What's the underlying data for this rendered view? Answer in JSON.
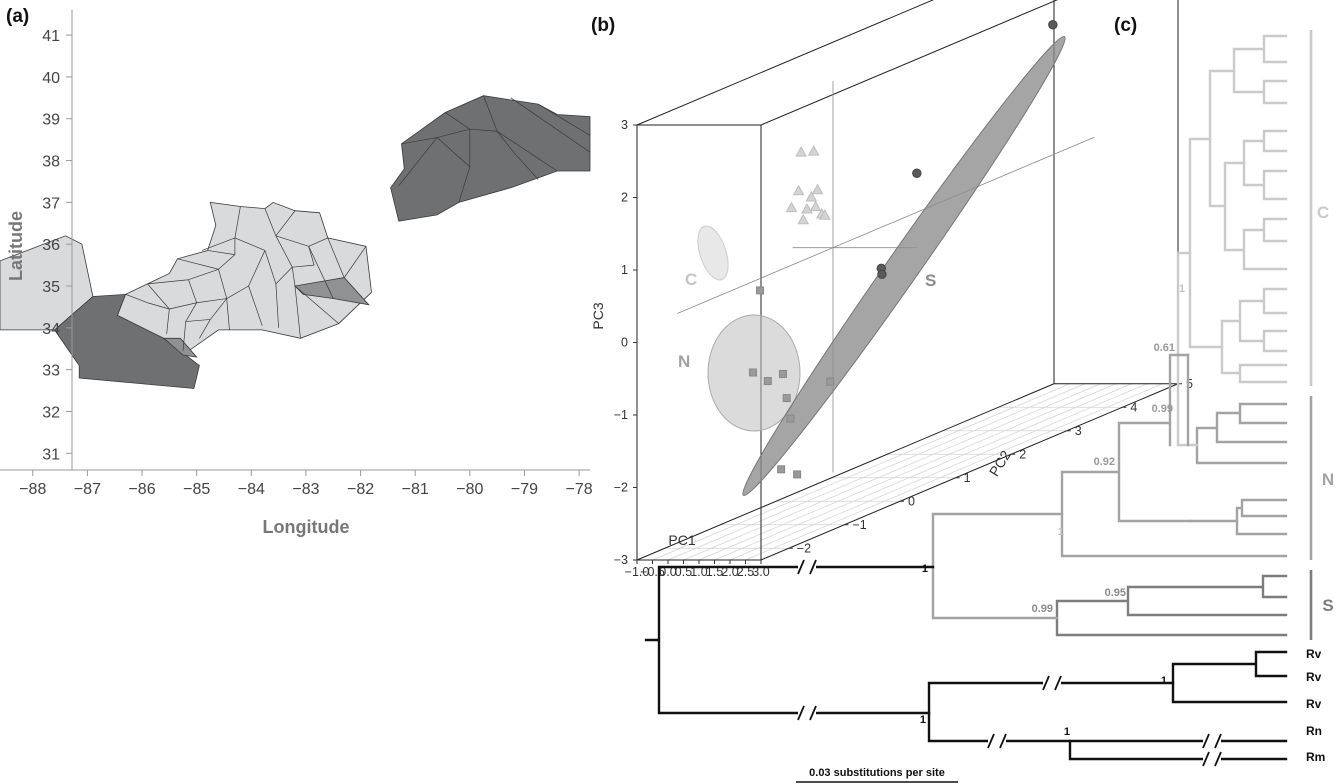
{
  "colors": {
    "light_region": "#d9dadc",
    "mid_region": "#8f9193",
    "dark_region": "#6e7072",
    "clade_C": "#cacaca",
    "clade_N": "#a3a3a3",
    "clade_S": "#7d7d7d",
    "outgroup": "#111111"
  },
  "panels": {
    "a": {
      "label": "(a)"
    },
    "b": {
      "label": "(b)"
    },
    "c": {
      "label": "(c)"
    }
  },
  "chart_data": [
    {
      "panel": "a",
      "type": "map",
      "xlabel": "Longitude",
      "ylabel": "Latitude",
      "xlim": [
        -88.6,
        -77.8
      ],
      "ylim": [
        30.6,
        41.6
      ],
      "x_ticks": [
        -88,
        -87,
        -86,
        -85,
        -84,
        -83,
        -82,
        -81,
        -80,
        -79,
        -78
      ],
      "y_ticks": [
        31,
        32,
        33,
        34,
        35,
        36,
        37,
        38,
        39,
        40,
        41
      ],
      "regions": [
        {
          "group": "light",
          "polygon": [
            [
              -88.6,
              35.6
            ],
            [
              -87.4,
              36.2
            ],
            [
              -87.1,
              36.0
            ],
            [
              -86.9,
              34.75
            ],
            [
              -87.6,
              33.95
            ],
            [
              -88.6,
              33.95
            ]
          ]
        },
        {
          "group": "dark",
          "polygon": [
            [
              -87.6,
              33.95
            ],
            [
              -86.9,
              34.75
            ],
            [
              -86.3,
              34.8
            ],
            [
              -86.45,
              34.3
            ],
            [
              -85.6,
              33.75
            ],
            [
              -84.95,
              33.1
            ],
            [
              -85.05,
              32.55
            ],
            [
              -87.15,
              32.8
            ],
            [
              -87.15,
              33.1
            ]
          ]
        },
        {
          "group": "light",
          "polygon": [
            [
              -86.45,
              34.3
            ],
            [
              -86.3,
              34.8
            ],
            [
              -85.9,
              35.05
            ],
            [
              -85.5,
              35.3
            ],
            [
              -85.35,
              35.65
            ],
            [
              -84.8,
              35.85
            ],
            [
              -84.65,
              36.45
            ],
            [
              -84.75,
              37.0
            ],
            [
              -84.2,
              36.9
            ],
            [
              -83.75,
              36.85
            ],
            [
              -83.6,
              37.0
            ],
            [
              -83.2,
              36.8
            ],
            [
              -82.75,
              36.75
            ],
            [
              -82.6,
              36.15
            ],
            [
              -81.9,
              35.95
            ],
            [
              -81.8,
              34.85
            ],
            [
              -82.4,
              34.1
            ],
            [
              -83.1,
              33.75
            ],
            [
              -83.8,
              33.95
            ],
            [
              -84.6,
              33.95
            ],
            [
              -85.2,
              33.4
            ],
            [
              -85.6,
              33.75
            ]
          ]
        },
        {
          "group": "mid",
          "polygon": [
            [
              -83.2,
              35.0
            ],
            [
              -82.3,
              35.2
            ],
            [
              -81.85,
              34.55
            ],
            [
              -82.5,
              34.7
            ],
            [
              -83.05,
              34.8
            ]
          ]
        },
        {
          "group": "mid",
          "polygon": [
            [
              -85.6,
              33.75
            ],
            [
              -85.3,
              33.75
            ],
            [
              -85.0,
              33.3
            ],
            [
              -85.25,
              33.35
            ]
          ]
        },
        {
          "group": "dark",
          "polygon": [
            [
              -81.45,
              37.35
            ],
            [
              -81.2,
              37.8
            ],
            [
              -81.25,
              38.4
            ],
            [
              -80.45,
              39.15
            ],
            [
              -79.75,
              39.55
            ],
            [
              -78.75,
              39.35
            ],
            [
              -78.4,
              39.1
            ],
            [
              -77.8,
              39.05
            ],
            [
              -77.8,
              37.75
            ],
            [
              -78.4,
              37.75
            ],
            [
              -79.25,
              37.35
            ],
            [
              -80.2,
              37.0
            ],
            [
              -80.6,
              36.7
            ],
            [
              -81.3,
              36.55
            ]
          ]
        }
      ],
      "boundaries": [
        [
          [
            -84.2,
            36.9
          ],
          [
            -84.3,
            36.15
          ]
        ],
        [
          [
            -84.3,
            36.15
          ],
          [
            -84.9,
            35.85
          ]
        ],
        [
          [
            -84.3,
            36.15
          ],
          [
            -83.75,
            35.85
          ]
        ],
        [
          [
            -83.75,
            36.85
          ],
          [
            -83.55,
            36.2
          ]
        ],
        [
          [
            -83.55,
            36.2
          ],
          [
            -83.2,
            36.8
          ]
        ],
        [
          [
            -83.55,
            36.2
          ],
          [
            -82.95,
            35.95
          ]
        ],
        [
          [
            -82.95,
            35.95
          ],
          [
            -82.6,
            36.15
          ]
        ],
        [
          [
            -82.95,
            35.95
          ],
          [
            -82.5,
            34.7
          ]
        ],
        [
          [
            -83.55,
            36.2
          ],
          [
            -83.25,
            35.45
          ]
        ],
        [
          [
            -83.25,
            35.45
          ],
          [
            -82.85,
            35.5
          ]
        ],
        [
          [
            -82.85,
            35.5
          ],
          [
            -82.95,
            35.95
          ]
        ],
        [
          [
            -84.3,
            36.15
          ],
          [
            -84.3,
            35.75
          ]
        ],
        [
          [
            -84.3,
            35.75
          ],
          [
            -84.8,
            35.85
          ]
        ],
        [
          [
            -84.3,
            35.75
          ],
          [
            -84.6,
            35.4
          ]
        ],
        [
          [
            -84.6,
            35.4
          ],
          [
            -85.35,
            35.65
          ]
        ],
        [
          [
            -85.9,
            35.05
          ],
          [
            -85.15,
            35.15
          ]
        ],
        [
          [
            -85.15,
            35.15
          ],
          [
            -84.6,
            35.4
          ]
        ],
        [
          [
            -85.15,
            35.15
          ],
          [
            -85.0,
            34.6
          ]
        ],
        [
          [
            -85.0,
            34.6
          ],
          [
            -85.5,
            34.45
          ]
        ],
        [
          [
            -85.5,
            34.45
          ],
          [
            -85.9,
            35.05
          ]
        ],
        [
          [
            -85.5,
            34.45
          ],
          [
            -85.55,
            33.85
          ]
        ],
        [
          [
            -85.0,
            34.6
          ],
          [
            -84.45,
            34.7
          ]
        ],
        [
          [
            -84.45,
            34.7
          ],
          [
            -84.6,
            35.4
          ]
        ],
        [
          [
            -84.45,
            34.7
          ],
          [
            -84.4,
            33.95
          ]
        ],
        [
          [
            -84.45,
            34.7
          ],
          [
            -84.05,
            35.0
          ]
        ],
        [
          [
            -84.05,
            35.0
          ],
          [
            -83.75,
            35.85
          ]
        ],
        [
          [
            -84.05,
            35.0
          ],
          [
            -83.8,
            34.05
          ]
        ],
        [
          [
            -83.75,
            35.85
          ],
          [
            -83.55,
            35.05
          ]
        ],
        [
          [
            -83.55,
            35.05
          ],
          [
            -83.25,
            35.45
          ]
        ],
        [
          [
            -83.55,
            35.05
          ],
          [
            -83.5,
            34.0
          ]
        ],
        [
          [
            -83.25,
            35.45
          ],
          [
            -83.2,
            35.0
          ]
        ],
        [
          [
            -83.2,
            35.0
          ],
          [
            -83.1,
            33.75
          ]
        ],
        [
          [
            -83.2,
            35.0
          ],
          [
            -82.4,
            34.1
          ]
        ],
        [
          [
            -82.3,
            35.2
          ],
          [
            -82.6,
            36.15
          ]
        ],
        [
          [
            -82.3,
            35.2
          ],
          [
            -81.9,
            35.95
          ]
        ],
        [
          [
            -85.2,
            34.15
          ],
          [
            -85.0,
            34.6
          ]
        ],
        [
          [
            -85.2,
            34.15
          ],
          [
            -84.75,
            34.2
          ]
        ],
        [
          [
            -84.75,
            34.2
          ],
          [
            -84.45,
            34.7
          ]
        ],
        [
          [
            -85.2,
            34.15
          ],
          [
            -85.25,
            33.45
          ]
        ],
        [
          [
            -84.75,
            34.2
          ],
          [
            -84.95,
            33.75
          ]
        ],
        [
          [
            -86.3,
            34.8
          ],
          [
            -85.9,
            34.6
          ]
        ],
        [
          [
            -85.9,
            34.6
          ],
          [
            -85.5,
            34.45
          ]
        ],
        [
          [
            -80.45,
            39.15
          ],
          [
            -80.0,
            38.75
          ]
        ],
        [
          [
            -80.0,
            38.75
          ],
          [
            -80.6,
            38.55
          ]
        ],
        [
          [
            -80.6,
            38.55
          ],
          [
            -81.25,
            38.4
          ]
        ],
        [
          [
            -80.0,
            38.75
          ],
          [
            -79.5,
            38.7
          ]
        ],
        [
          [
            -79.5,
            38.7
          ],
          [
            -79.75,
            39.55
          ]
        ],
        [
          [
            -79.5,
            38.7
          ],
          [
            -79.2,
            38.2
          ]
        ],
        [
          [
            -80.0,
            38.75
          ],
          [
            -80.0,
            37.85
          ]
        ],
        [
          [
            -80.0,
            37.85
          ],
          [
            -80.2,
            37.0
          ]
        ],
        [
          [
            -80.0,
            37.85
          ],
          [
            -80.6,
            38.55
          ]
        ],
        [
          [
            -79.5,
            38.7
          ],
          [
            -78.4,
            37.75
          ]
        ],
        [
          [
            -79.25,
            39.5
          ],
          [
            -77.8,
            38.2
          ]
        ],
        [
          [
            -78.75,
            39.35
          ],
          [
            -77.8,
            38.6
          ]
        ],
        [
          [
            -79.2,
            38.2
          ],
          [
            -78.75,
            37.55
          ]
        ],
        [
          [
            -80.6,
            38.55
          ],
          [
            -81.3,
            37.4
          ]
        ]
      ]
    },
    {
      "panel": "b",
      "type": "scatter",
      "xlabel": "PC1",
      "ylabel": "PC2",
      "zlabel": "PC3",
      "x_ticks": [
        "-1.0",
        "-0.5",
        "0.0",
        "0.5",
        "1.0",
        "1.5",
        "2.0",
        "2.5",
        "3.0"
      ],
      "y_ticks": [
        "-2",
        "-1",
        "0",
        "1",
        "2",
        "3",
        "4",
        "5"
      ],
      "z_ticks": [
        "-3",
        "-2",
        "-1",
        "0",
        "1",
        "2",
        "3"
      ],
      "xlim": [
        -1.0,
        3.0
      ],
      "ylim": [
        -2.5,
        5.0
      ],
      "zlim": [
        -3,
        3
      ],
      "series": [
        {
          "name": "C",
          "marker": "triangle",
          "x": [
            -0.55,
            -0.5,
            -0.45,
            -0.4,
            -0.5,
            -0.45,
            -0.35,
            -0.3,
            -0.42,
            -0.5,
            -0.2
          ],
          "y": [
            0.2,
            0.4,
            0.1,
            0.3,
            0.0,
            0.25,
            0.35,
            0.1,
            0.5,
            0.6,
            0.3
          ],
          "z": [
            1.75,
            1.7,
            1.25,
            1.1,
            1.05,
            0.95,
            0.95,
            0.85,
            0.8,
            0.75,
            1.2
          ]
        },
        {
          "name": "N",
          "marker": "square",
          "x": [
            0.1,
            0.05,
            0.3,
            0.35,
            0.75,
            0.6,
            0.9,
            0.6,
            0.4
          ],
          "y": [
            -0.9,
            -1.0,
            -0.6,
            -0.9,
            0.0,
            -0.7,
            -0.8,
            -0.8,
            -0.4
          ],
          "z": [
            0.2,
            -0.9,
            -1.05,
            -1.05,
            -1.35,
            -1.35,
            -1.6,
            -2.3,
            -2.5
          ]
        },
        {
          "name": "S",
          "marker": "circle",
          "x": [
            2.55,
            1.75,
            1.5,
            1.7
          ],
          "y": [
            3.0,
            1.0,
            0.5,
            0.4
          ],
          "z": [
            2.6,
            1.2,
            0.05,
            0.0
          ]
        }
      ]
    },
    {
      "panel": "c",
      "type": "tree",
      "scale_label": "0.03 substitutions per site",
      "clades": [
        "C",
        "N",
        "S"
      ],
      "support_values": [
        {
          "label": "1",
          "clade": "C"
        },
        {
          "label": "0.61",
          "clade": "N"
        },
        {
          "label": "0.99",
          "clade": "N"
        },
        {
          "label": "0.92",
          "clade": "N"
        },
        {
          "label": "1",
          "clade": "N"
        },
        {
          "label": "0.95",
          "clade": "S"
        },
        {
          "label": "0.99",
          "clade": "S"
        },
        {
          "label": "1",
          "clade": "outgroup"
        },
        {
          "label": "1",
          "clade": "outgroup"
        },
        {
          "label": "1",
          "clade": "outgroup"
        },
        {
          "label": "1",
          "clade": "outgroup"
        }
      ],
      "tip_labels": [
        "Rv",
        "Rv",
        "Rv",
        "Rn",
        "Rm"
      ]
    }
  ]
}
